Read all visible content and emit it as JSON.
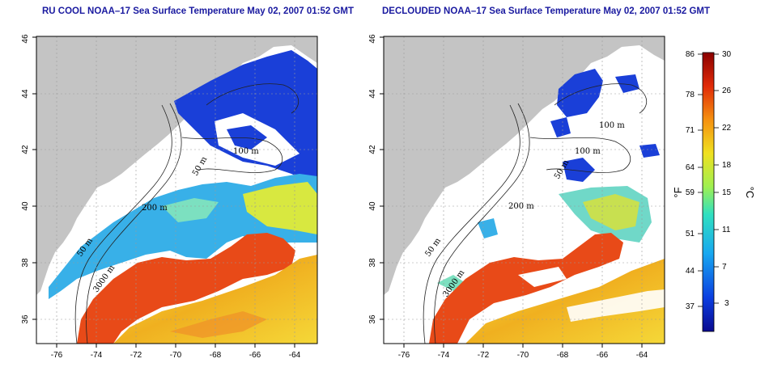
{
  "panels": [
    {
      "title": "RU COOL NOAA–17 Sea Surface Temperature May 02, 2007 01:52 GMT",
      "x_ticks": [
        "-76",
        "-74",
        "-72",
        "-70",
        "-68",
        "-66",
        "-64"
      ],
      "y_ticks": [
        "36",
        "38",
        "40",
        "42",
        "44",
        "46"
      ],
      "contours": [
        "200 m",
        "100 m",
        "50 m",
        "50 m",
        "3000 m"
      ]
    },
    {
      "title": "DECLOUDED NOAA–17 Sea Surface Temperature May 02, 2007 01:52 GMT",
      "x_ticks": [
        "-76",
        "-74",
        "-72",
        "-70",
        "-68",
        "-66",
        "-64"
      ],
      "y_ticks": [
        "36",
        "38",
        "40",
        "42",
        "44",
        "46"
      ],
      "contours": [
        "200 m",
        "100 m",
        "100 m",
        "50 m",
        "50 m",
        "3000 m"
      ]
    }
  ],
  "colorbar": {
    "f_ticks": [
      "86",
      "78",
      "71",
      "64",
      "59",
      "51",
      "44",
      "37"
    ],
    "c_ticks": [
      "30",
      "26",
      "22",
      "18",
      "15",
      "11",
      "7",
      "3"
    ],
    "f_label": "°F",
    "c_label": "°C"
  },
  "colors": {
    "land": "#c4c4c4",
    "cold": "#1133cc",
    "cool": "#38a8e8",
    "mild": "#e8e030",
    "warm": "#e83a10",
    "title": "#1a1aa0"
  }
}
